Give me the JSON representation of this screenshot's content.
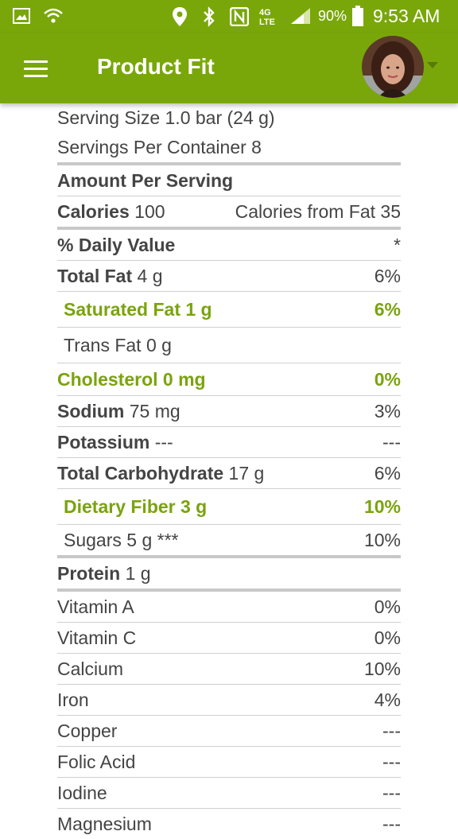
{
  "status_bar": {
    "battery": "90%",
    "time": "9:53 AM",
    "network": "4G LTE",
    "icons": [
      "image-icon",
      "wifi-icon",
      "location-icon",
      "bluetooth-icon",
      "nfc-icon",
      "signal-icon",
      "battery-icon"
    ]
  },
  "header": {
    "title": "Product Fit",
    "menu_icon": "hamburger-menu-icon",
    "avatar": "user-avatar"
  },
  "nutrition": {
    "serving_size": "Serving Size 1.0 bar (24 g)",
    "servings_per_container": "Servings Per Container 8",
    "amount_per_serving": "Amount Per Serving",
    "calories_label": "Calories",
    "calories_value": "100",
    "calories_from_fat": "Calories from Fat 35",
    "daily_value_label": "% Daily Value",
    "daily_value_mark": "*",
    "rows": [
      {
        "label": "Total Fat",
        "amount": "4 g",
        "dv": "6%"
      },
      {
        "label": "Saturated Fat 1 g",
        "dv": "6%"
      },
      {
        "label": "Trans Fat 0 g",
        "dv": ""
      },
      {
        "label": "Cholesterol 0 mg",
        "dv": "0%"
      },
      {
        "label": "Sodium",
        "amount": "75 mg",
        "dv": "3%"
      },
      {
        "label": "Potassium",
        "amount": "---",
        "dv": "---"
      },
      {
        "label": "Total Carbohydrate",
        "amount": "17 g",
        "dv": "6%"
      },
      {
        "label": "Dietary Fiber 3 g",
        "dv": "10%"
      },
      {
        "label": "Sugars 5 g ***",
        "dv": "10%"
      },
      {
        "label": "Protein",
        "amount": "1 g",
        "dv": ""
      }
    ],
    "vitamins": [
      {
        "label": "Vitamin A",
        "dv": "0%"
      },
      {
        "label": "Vitamin C",
        "dv": "0%"
      },
      {
        "label": "Calcium",
        "dv": "10%"
      },
      {
        "label": "Iron",
        "dv": "4%"
      },
      {
        "label": "Copper",
        "dv": "---"
      },
      {
        "label": "Folic Acid",
        "dv": "---"
      },
      {
        "label": "Iodine",
        "dv": "---"
      },
      {
        "label": "Magnesium",
        "dv": "---"
      }
    ]
  }
}
